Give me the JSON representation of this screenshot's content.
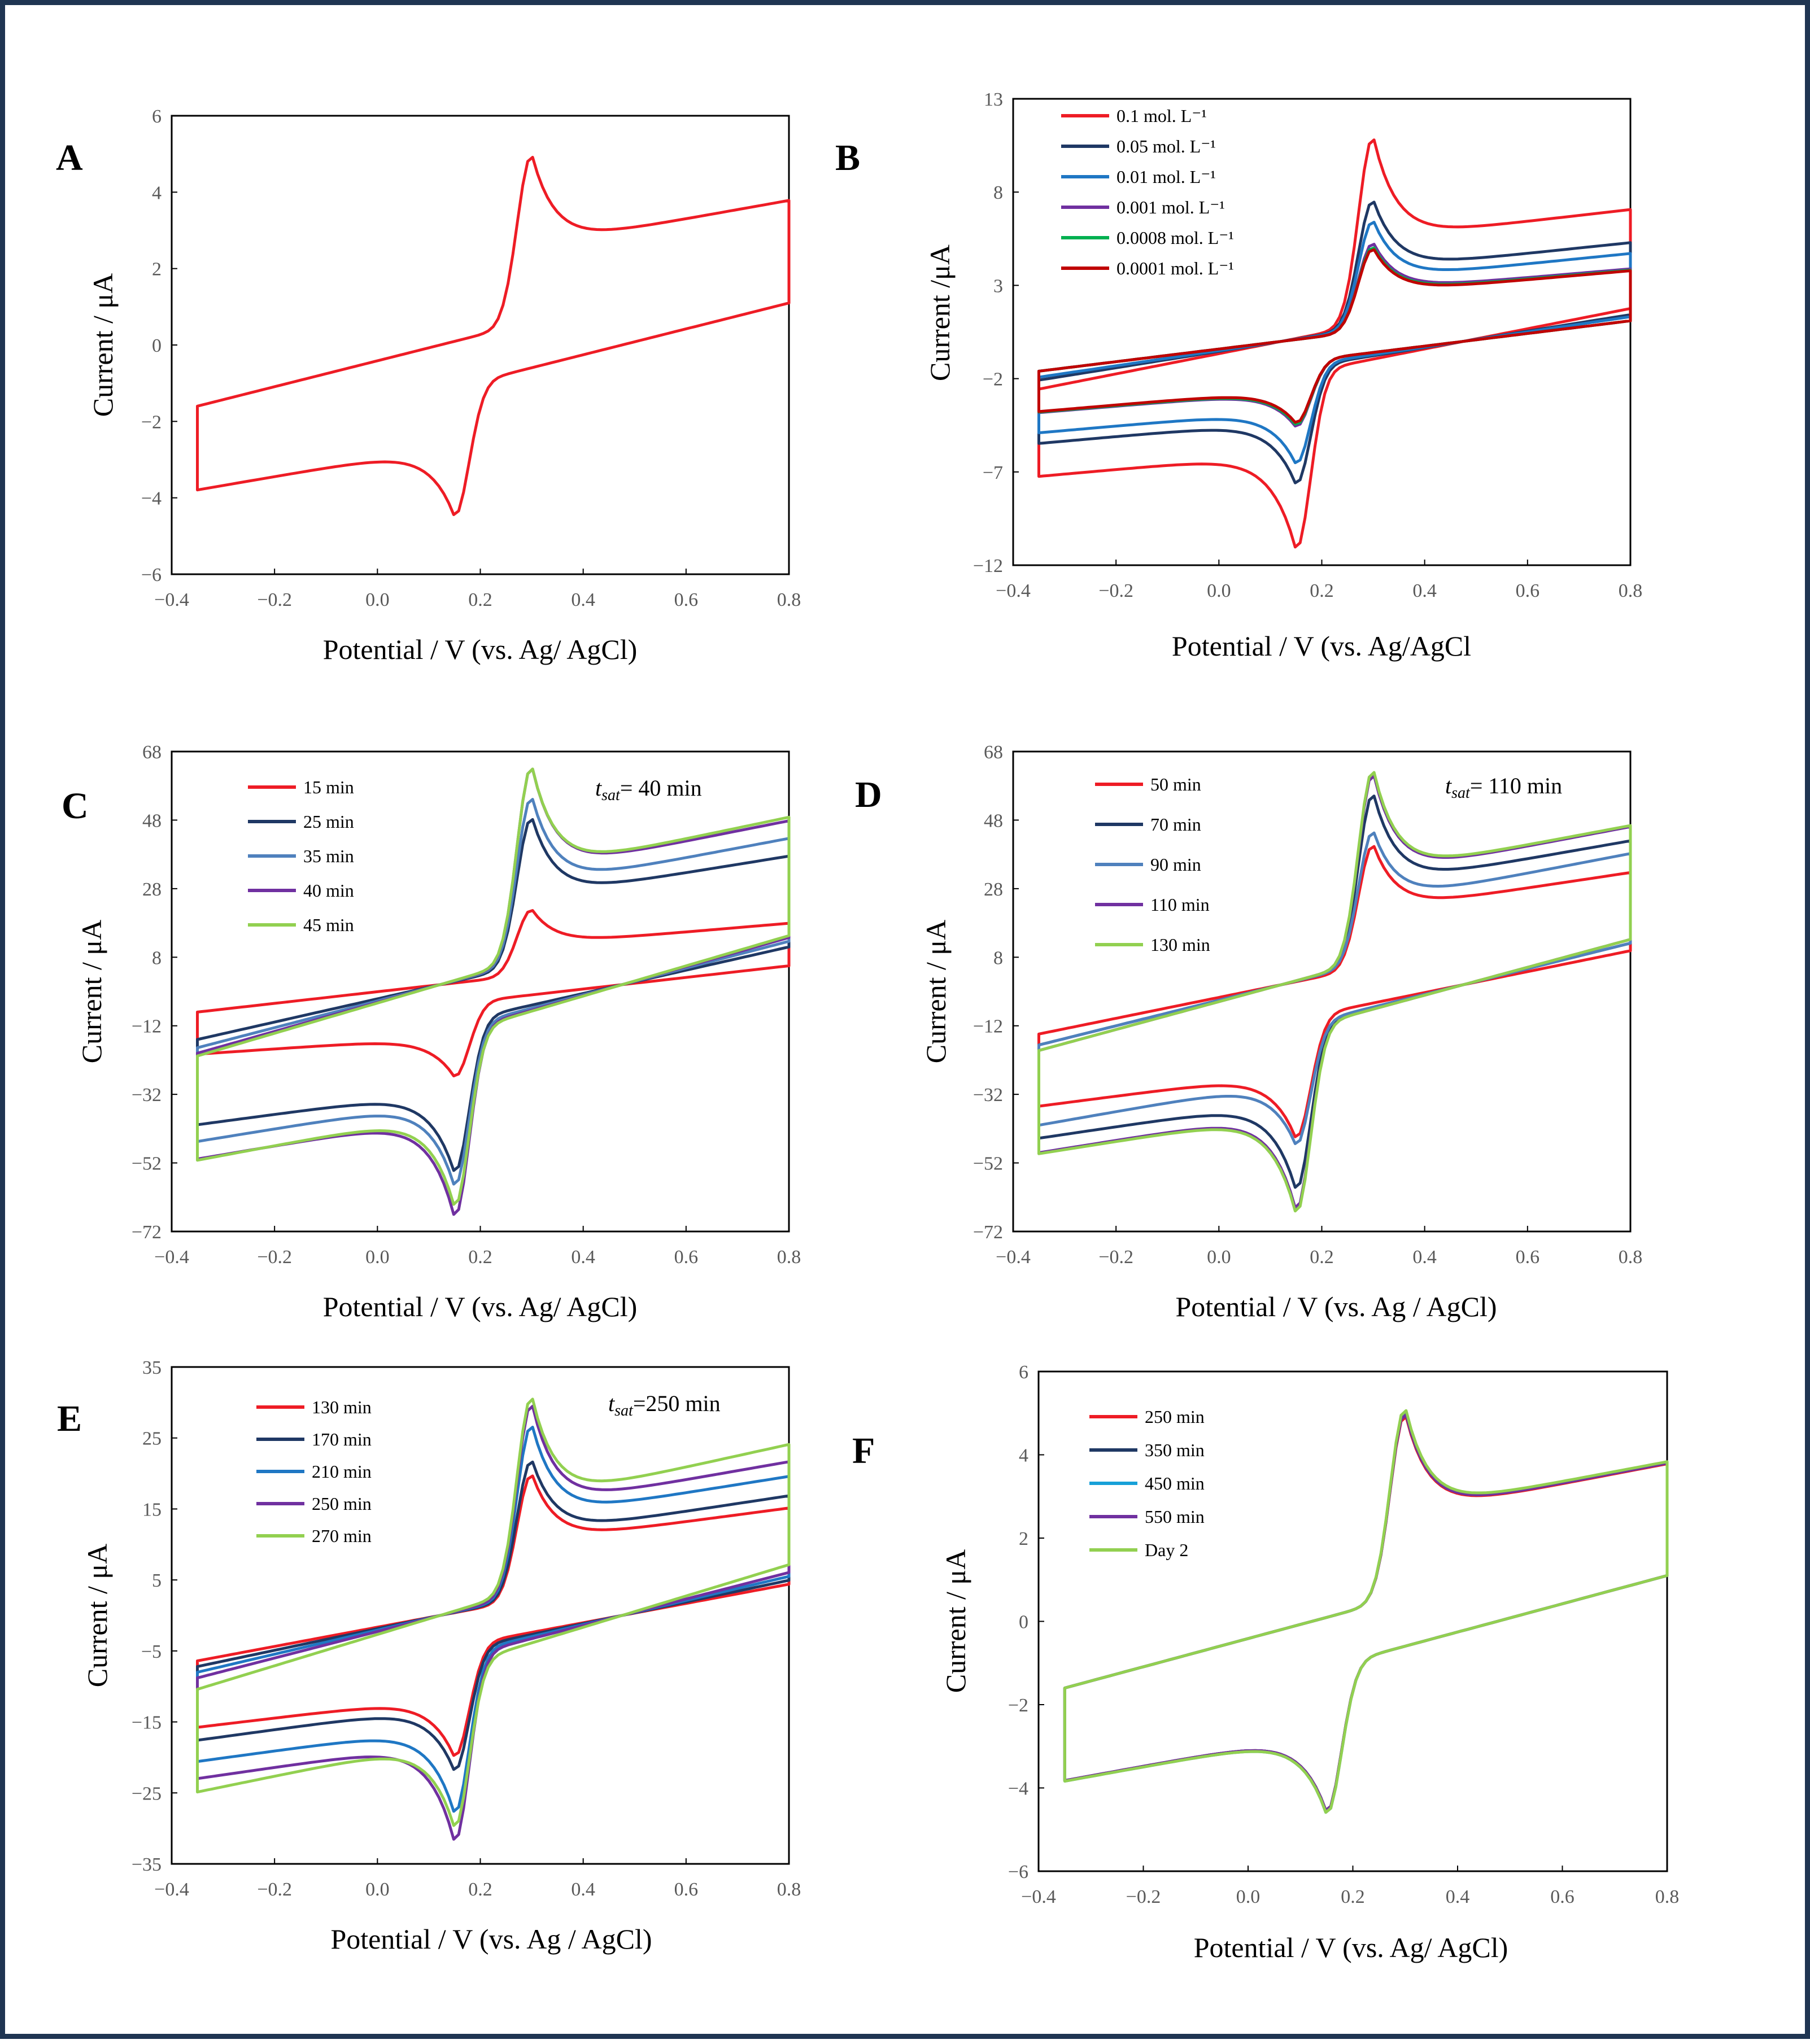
{
  "figure": {
    "border_color": "#1f3552"
  },
  "chart_data": [
    {
      "panel": "A",
      "type": "line",
      "xlabel": "Potential / V (vs. Ag/ AgCl)",
      "ylabel": "Current / μA",
      "xlim": [
        -0.4,
        0.8
      ],
      "ylim": [
        -6,
        6
      ],
      "xticks": [
        "−0.4",
        "−0.2",
        "0.0",
        "0.2",
        "0.4",
        "0.6",
        "0.8"
      ],
      "yticks": [
        "6",
        "4",
        "2",
        "0",
        "−2",
        "−4",
        "−6"
      ],
      "annotation": "",
      "series": [
        {
          "name": "",
          "color": "#ee1c25",
          "ipa": 5.0,
          "ipc": -4.5,
          "scale": 1.0
        }
      ]
    },
    {
      "panel": "B",
      "type": "line",
      "xlabel": "Potential / V (vs. Ag/AgCl",
      "ylabel": "Current /μA",
      "xlim": [
        -0.4,
        0.8
      ],
      "ylim": [
        -12,
        13
      ],
      "xticks": [
        "−0.4",
        "−0.2",
        "0.0",
        "0.2",
        "0.4",
        "0.6",
        "0.8"
      ],
      "yticks": [
        "13",
        "8",
        "3",
        "−2",
        "−7",
        "−12"
      ],
      "annotation": "",
      "series": [
        {
          "name": "0.1 mol. L⁻¹",
          "color": "#ee1c25",
          "ipa": 11.0,
          "ipc": -11.2,
          "scale": 1.6
        },
        {
          "name": "0.05 mol. L⁻¹",
          "color": "#1f3864",
          "ipa": 7.6,
          "ipc": -7.7,
          "scale": 1.3
        },
        {
          "name": "0.01 mol. L⁻¹",
          "color": "#1f77c4",
          "ipa": 6.5,
          "ipc": -6.6,
          "scale": 1.2
        },
        {
          "name": "0.001 mol. L⁻¹",
          "color": "#7030a0",
          "ipa": 5.3,
          "ipc": -4.6,
          "scale": 1.0
        },
        {
          "name": "0.0008 mol. L⁻¹",
          "color": "#00b050",
          "ipa": 5.1,
          "ipc": -4.5,
          "scale": 1.0
        },
        {
          "name": "0.0001 mol. L⁻¹",
          "color": "#c00000",
          "ipa": 5.0,
          "ipc": -4.4,
          "scale": 1.0
        }
      ]
    },
    {
      "panel": "C",
      "type": "line",
      "xlabel": "Potential / V (vs. Ag/ AgCl)",
      "ylabel": "Current / μA",
      "xlim": [
        -0.4,
        0.8
      ],
      "ylim": [
        -72,
        68
      ],
      "xticks": [
        "−0.4",
        "−0.2",
        "0.0",
        "0.2",
        "0.4",
        "0.6",
        "0.8"
      ],
      "yticks": [
        "68",
        "48",
        "28",
        "8",
        "−12",
        "−32",
        "−52",
        "−72"
      ],
      "annotation": {
        "t": "t",
        "sub": "sat",
        "rest": "= 40 min"
      },
      "series": [
        {
          "name": "15 min",
          "color": "#ee1c25",
          "ipa": 22,
          "ipc": -27,
          "scale": 5.0
        },
        {
          "name": "25 min",
          "color": "#1f3864",
          "ipa": 49,
          "ipc": -55,
          "scale": 10.0
        },
        {
          "name": "35 min",
          "color": "#4f81bd",
          "ipa": 55,
          "ipc": -59,
          "scale": 11.5
        },
        {
          "name": "40 min",
          "color": "#7030a0",
          "ipa": 64,
          "ipc": -68,
          "scale": 12.5
        },
        {
          "name": "45 min",
          "color": "#92d050",
          "ipa": 64,
          "ipc": -65,
          "scale": 13.0
        }
      ]
    },
    {
      "panel": "D",
      "type": "line",
      "xlabel": "Potential / V (vs. Ag / AgCl)",
      "ylabel": "Current / μA",
      "xlim": [
        -0.4,
        0.8
      ],
      "ylim": [
        -72,
        68
      ],
      "xticks": [
        "−0.4",
        "−0.2",
        "0.0",
        "0.2",
        "0.4",
        "0.6",
        "0.8"
      ],
      "yticks": [
        "68",
        "48",
        "28",
        "8",
        "−12",
        "−32",
        "−52",
        "−72"
      ],
      "annotation": {
        "t": "t",
        "sub": "sat",
        "rest": "= 110 min"
      },
      "series": [
        {
          "name": "50 min",
          "color": "#ee1c25",
          "ipa": 41,
          "ipc": -45,
          "scale": 9.0
        },
        {
          "name": "70 min",
          "color": "#1f3864",
          "ipa": 56,
          "ipc": -60,
          "scale": 11.0
        },
        {
          "name": "90 min",
          "color": "#4f81bd",
          "ipa": 45,
          "ipc": -47,
          "scale": 11.0
        },
        {
          "name": "110 min",
          "color": "#7030a0",
          "ipa": 62,
          "ipc": -66,
          "scale": 12.0
        },
        {
          "name": "130 min",
          "color": "#92d050",
          "ipa": 63,
          "ipc": -67,
          "scale": 12.0
        }
      ]
    },
    {
      "panel": "E",
      "type": "line",
      "xlabel": "Potential / V (vs. Ag / AgCl)",
      "ylabel": "Current / μA",
      "xlim": [
        -0.4,
        0.8
      ],
      "ylim": [
        -35,
        35
      ],
      "xticks": [
        "−0.4",
        "−0.2",
        "0.0",
        "0.2",
        "0.4",
        "0.6",
        "0.8"
      ],
      "yticks": [
        "35",
        "25",
        "15",
        "5",
        "−5",
        "−15",
        "−25",
        "−35"
      ],
      "annotation": {
        "t": "t",
        "sub": "sat",
        "rest": "=250 min"
      },
      "series": [
        {
          "name": "130 min",
          "color": "#ee1c25",
          "ipa": 20,
          "ipc": -20,
          "scale": 4.0
        },
        {
          "name": "170 min",
          "color": "#1f3864",
          "ipa": 22,
          "ipc": -22,
          "scale": 4.5
        },
        {
          "name": "210 min",
          "color": "#1f77c4",
          "ipa": 27,
          "ipc": -28,
          "scale": 5.0
        },
        {
          "name": "250 min",
          "color": "#7030a0",
          "ipa": 30,
          "ipc": -32,
          "scale": 5.5
        },
        {
          "name": "270 min",
          "color": "#92d050",
          "ipa": 31,
          "ipc": -30,
          "scale": 6.5
        }
      ]
    },
    {
      "panel": "F",
      "type": "line",
      "xlabel": "Potential / V (vs. Ag/ AgCl)",
      "ylabel": "Current / μA",
      "xlim": [
        -0.4,
        0.8
      ],
      "ylim": [
        -6,
        6
      ],
      "xticks": [
        "−0.4",
        "−0.2",
        "0.0",
        "0.2",
        "0.4",
        "0.6",
        "0.8"
      ],
      "yticks": [
        "6",
        "4",
        "2",
        "0",
        "−2",
        "−4",
        "−6"
      ],
      "annotation": "",
      "series": [
        {
          "name": "250 min",
          "color": "#ee1c25",
          "ipa": 5.0,
          "ipc": -4.6,
          "scale": 1.0
        },
        {
          "name": "350 min",
          "color": "#1f3864",
          "ipa": 5.05,
          "ipc": -4.6,
          "scale": 1.0
        },
        {
          "name": "450 min",
          "color": "#17a0d8",
          "ipa": 5.1,
          "ipc": -4.65,
          "scale": 1.0
        },
        {
          "name": "550 min",
          "color": "#7030a0",
          "ipa": 5.05,
          "ipc": -4.6,
          "scale": 1.0
        },
        {
          "name": "Day 2",
          "color": "#92d050",
          "ipa": 5.15,
          "ipc": -4.65,
          "scale": 1.0
        }
      ]
    }
  ]
}
